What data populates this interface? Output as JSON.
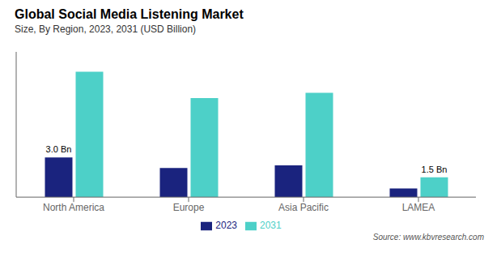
{
  "chart_data": {
    "type": "bar",
    "title": "Global Social Media Listening Market",
    "subtitle": "Size, By Region, 2023, 2031 (USD Billion)",
    "categories": [
      "North America",
      "Europe",
      "Asia Pacific",
      "LAMEA"
    ],
    "series": [
      {
        "name": "2023",
        "color": "#1a237e",
        "values": [
          3.0,
          2.2,
          2.4,
          0.65
        ]
      },
      {
        "name": "2031",
        "color": "#4dd0c8",
        "values": [
          9.5,
          7.5,
          7.9,
          1.5
        ]
      }
    ],
    "ylim": [
      0,
      11.0
    ],
    "grid": false,
    "legend": "bottom",
    "tick_labels": "x",
    "annotations": [
      {
        "text": "3.0 Bn",
        "category": "North America",
        "series": "2023"
      },
      {
        "text": "1.5 Bn",
        "category": "LAMEA",
        "series": "2031"
      },
      {
        "text": "Source: www.kbvresearch.com"
      }
    ]
  }
}
